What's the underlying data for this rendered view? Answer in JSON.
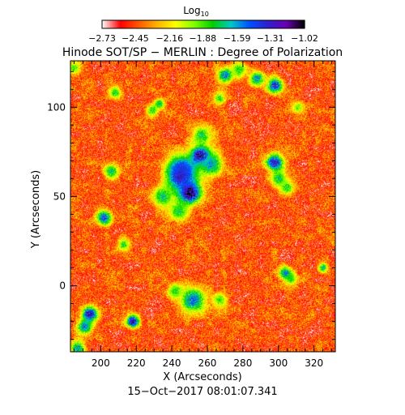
{
  "chart_data": {
    "type": "heatmap",
    "title": "Hinode SOT/SP − MERLIN : Degree of Polarization",
    "xlabel": "X (Arcseconds)",
    "ylabel": "Y (Arcseconds)",
    "timestamp": "15−Oct−2017 08:01:07.341",
    "xlim": [
      183,
      332
    ],
    "ylim": [
      -37,
      126
    ],
    "x_ticks": [
      200,
      220,
      240,
      260,
      280,
      300,
      320
    ],
    "x_tick_labels": [
      "200",
      "220",
      "240",
      "260",
      "280",
      "300",
      "320"
    ],
    "y_ticks": [
      0,
      50,
      100
    ],
    "y_tick_labels": [
      "0",
      "50",
      "100"
    ],
    "colorbar": {
      "label": "Log",
      "label_sub": "10",
      "min": -2.73,
      "max": -1.02,
      "ticks": [
        -2.73,
        -2.45,
        -2.16,
        -1.88,
        -1.59,
        -1.31,
        -1.02
      ],
      "tick_labels": [
        "−2.73",
        "−2.45",
        "−2.16",
        "−1.88",
        "−1.59",
        "−1.31",
        "−1.02"
      ],
      "colormap": [
        "#ffffff",
        "#ff0000",
        "#ff5a00",
        "#ffb400",
        "#ffff00",
        "#80ff00",
        "#00d000",
        "#00c8c8",
        "#0050ff",
        "#3020d0",
        "#6a00b0",
        "#000000"
      ]
    },
    "features": [
      {
        "x": 250,
        "y": 52,
        "value": -1.05,
        "spread": 4.5
      },
      {
        "x": 245,
        "y": 61,
        "value": -1.3,
        "spread": 6
      },
      {
        "x": 256,
        "y": 73,
        "value": -1.15,
        "spread": 4
      },
      {
        "x": 246,
        "y": 66,
        "value": -1.4,
        "spread": 5
      },
      {
        "x": 262,
        "y": 68,
        "value": -1.6,
        "spread": 5
      },
      {
        "x": 235,
        "y": 50,
        "value": -1.7,
        "spread": 4
      },
      {
        "x": 244,
        "y": 42,
        "value": -1.75,
        "spread": 4
      },
      {
        "x": 257,
        "y": 84,
        "value": -1.75,
        "spread": 4
      },
      {
        "x": 298,
        "y": 69,
        "value": -1.3,
        "spread": 3.5
      },
      {
        "x": 300,
        "y": 60,
        "value": -1.7,
        "spread": 3
      },
      {
        "x": 305,
        "y": 55,
        "value": -1.8,
        "spread": 3
      },
      {
        "x": 206,
        "y": 64,
        "value": -1.7,
        "spread": 3
      },
      {
        "x": 202,
        "y": 38,
        "value": -1.4,
        "spread": 3
      },
      {
        "x": 194,
        "y": -16,
        "value": -1.2,
        "spread": 3
      },
      {
        "x": 191,
        "y": -23,
        "value": -1.5,
        "spread": 3
      },
      {
        "x": 187,
        "y": -35,
        "value": -1.6,
        "spread": 3
      },
      {
        "x": 218,
        "y": -20,
        "value": -1.2,
        "spread": 2.5
      },
      {
        "x": 252,
        "y": -8,
        "value": -1.5,
        "spread": 5
      },
      {
        "x": 242,
        "y": -3,
        "value": -1.8,
        "spread": 3
      },
      {
        "x": 267,
        "y": -8,
        "value": -1.85,
        "spread": 3
      },
      {
        "x": 304,
        "y": 7,
        "value": -1.5,
        "spread": 2.5
      },
      {
        "x": 307,
        "y": 4,
        "value": -1.8,
        "spread": 2.5
      },
      {
        "x": 325,
        "y": 10,
        "value": -1.7,
        "spread": 2
      },
      {
        "x": 270,
        "y": 118,
        "value": -1.5,
        "spread": 3
      },
      {
        "x": 288,
        "y": 116,
        "value": -1.6,
        "spread": 3
      },
      {
        "x": 298,
        "y": 112,
        "value": -1.3,
        "spread": 3
      },
      {
        "x": 278,
        "y": 121,
        "value": -1.8,
        "spread": 3
      },
      {
        "x": 267,
        "y": 105,
        "value": -1.8,
        "spread": 2.5
      },
      {
        "x": 229,
        "y": 98,
        "value": -1.8,
        "spread": 2.5
      },
      {
        "x": 208,
        "y": 108,
        "value": -1.8,
        "spread": 2.5
      },
      {
        "x": 233,
        "y": 102,
        "value": -1.7,
        "spread": 2
      },
      {
        "x": 213,
        "y": 23,
        "value": -1.8,
        "spread": 2.5
      },
      {
        "x": 185,
        "y": 122,
        "value": -1.85,
        "spread": 2.5
      },
      {
        "x": 311,
        "y": 100,
        "value": -1.9,
        "spread": 2.5
      }
    ]
  }
}
